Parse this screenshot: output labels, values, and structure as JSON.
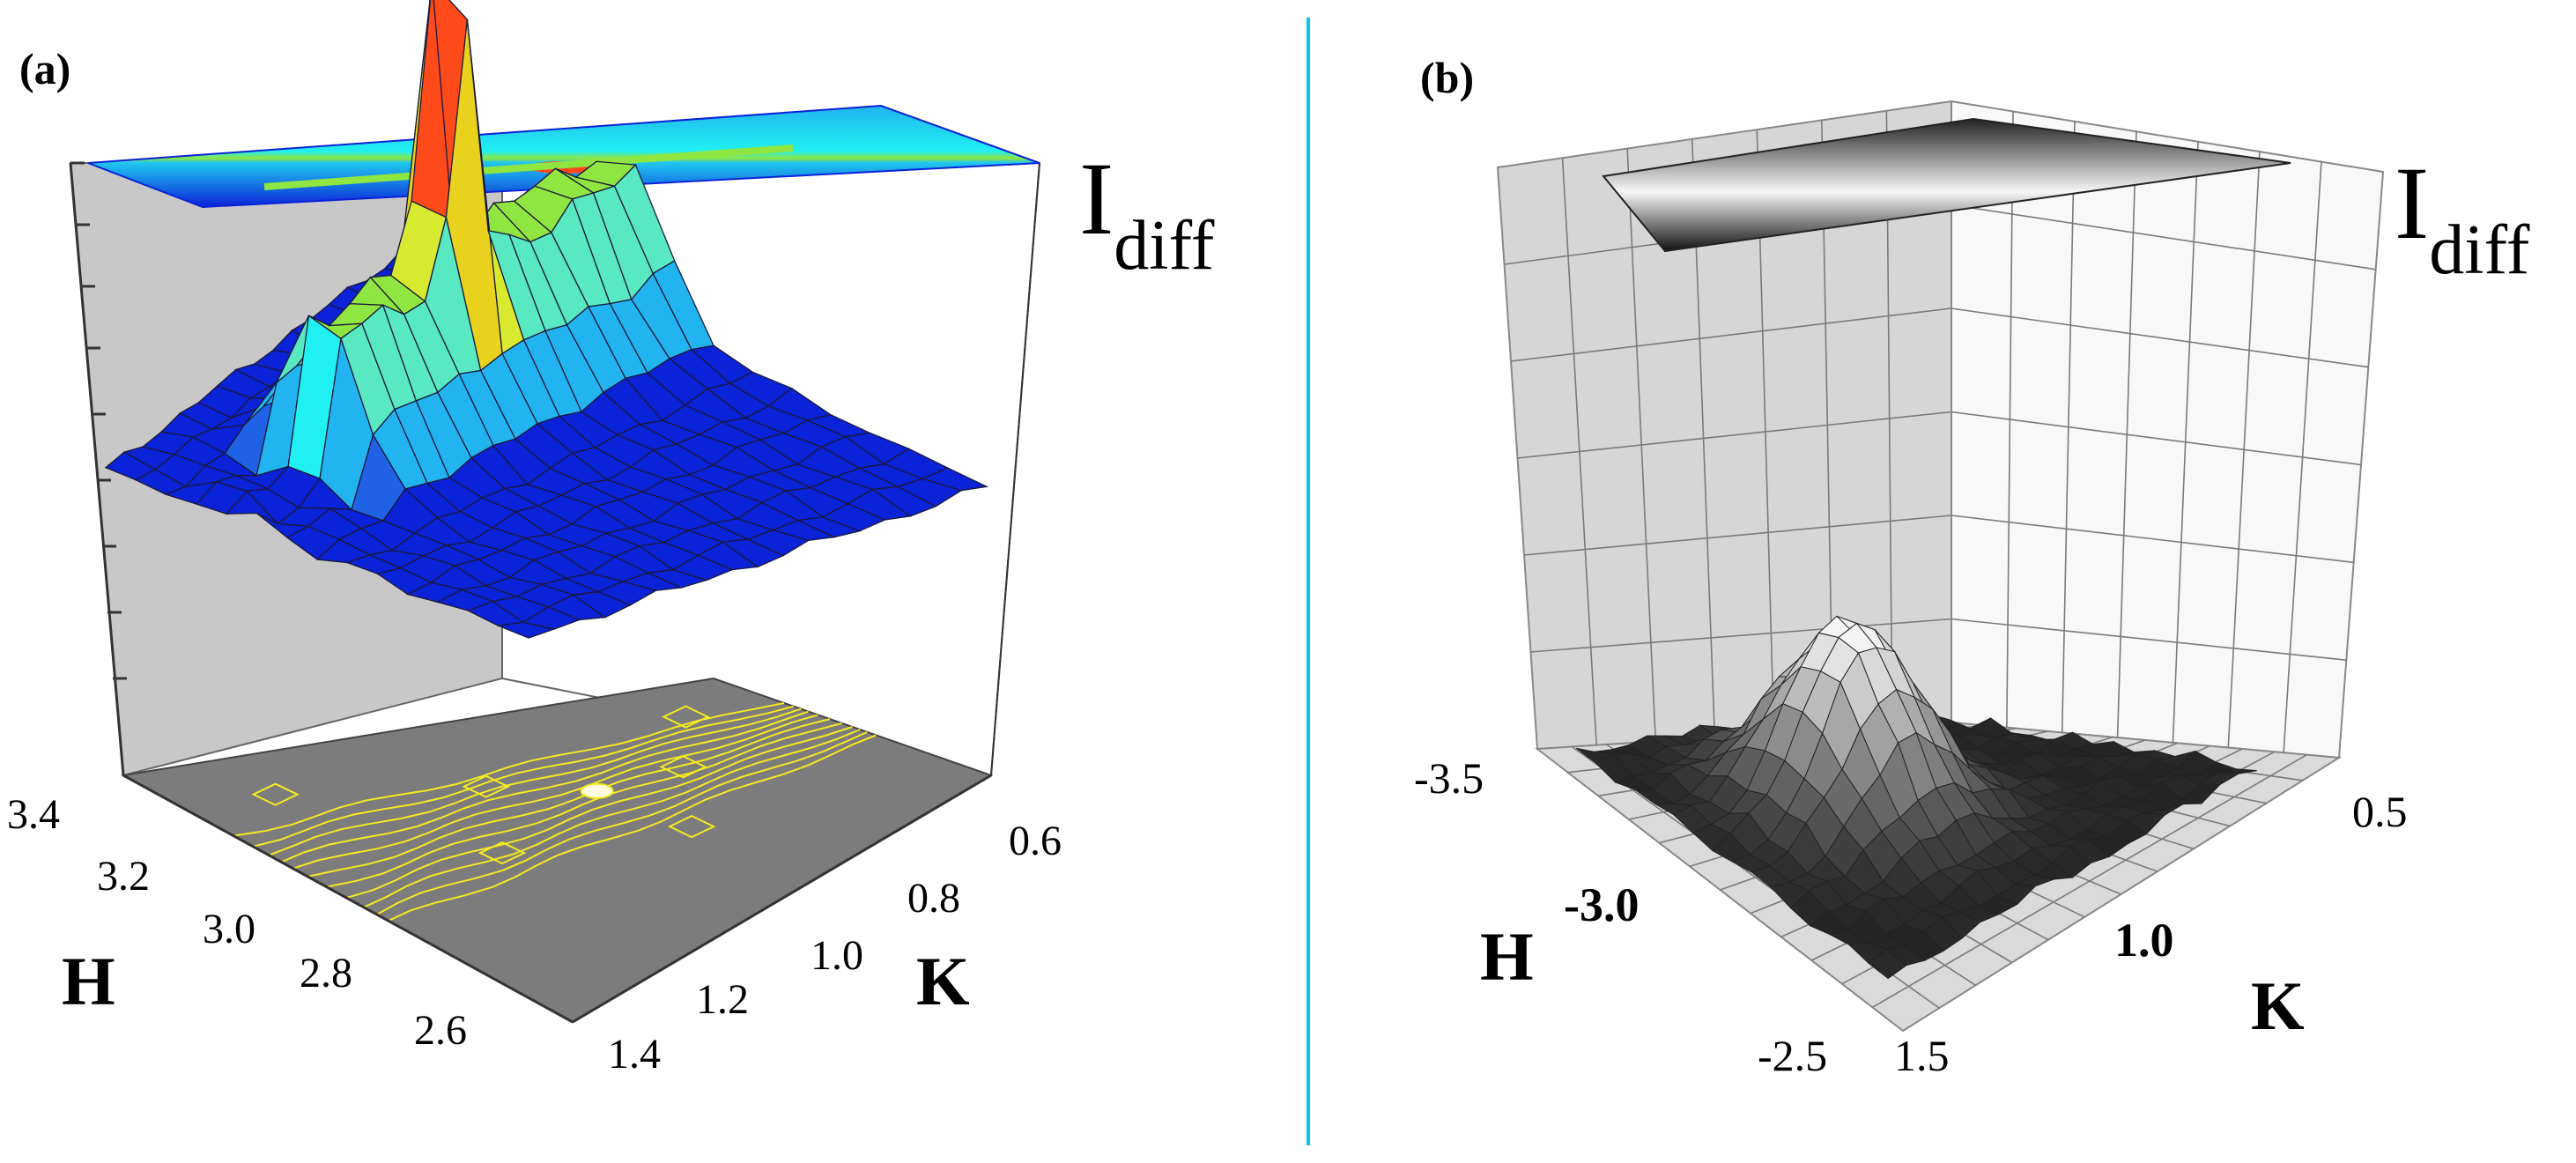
{
  "chart_data": [
    {
      "type": "surface3d",
      "panel_label": "(a)",
      "zlabel": "I",
      "zlabel_sub": "diff",
      "xlabel": "H",
      "ylabel": "K",
      "x_ticks": [
        "3.4",
        "3.2",
        "3.0",
        "2.8",
        "2.6"
      ],
      "y_ticks": [
        "0.6",
        "0.8",
        "1.0",
        "1.2",
        "1.4"
      ],
      "x_range": [
        2.5,
        3.45
      ],
      "y_range": [
        0.5,
        1.45
      ],
      "ridge_K": 1.0,
      "colormap": [
        "#0a22d8",
        "#1f62e6",
        "#22b4f0",
        "#20f0f2",
        "#58e8c2",
        "#8fe640",
        "#d8ea30",
        "#e8d21e",
        "#ff4a1a"
      ],
      "wall_color": "#c8c8c8",
      "floor_color": "#7c7c7c",
      "contour_color": "#f5ea20",
      "projections": [
        "top-colormap",
        "floor-contours"
      ]
    },
    {
      "type": "surface3d",
      "panel_label": "(b)",
      "zlabel": "I",
      "zlabel_sub": "diff",
      "xlabel": "H",
      "ylabel": "K",
      "x_ticks": [
        "-3.5",
        "-3.0",
        "-2.5"
      ],
      "y_ticks": [
        "0.5",
        "1.0",
        "1.5"
      ],
      "x_range": [
        -3.5,
        -2.5
      ],
      "y_range": [
        0.5,
        1.5
      ],
      "colormap": [
        "#111111",
        "#555555",
        "#aaaaaa",
        "#f4f4f4"
      ],
      "wall_color": "#d6d6d6",
      "grid": true,
      "projections": [
        "top-colormap"
      ]
    }
  ],
  "divider_color": "#00c8e6"
}
